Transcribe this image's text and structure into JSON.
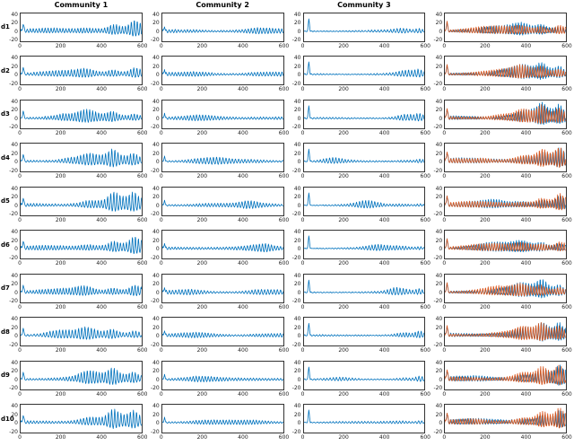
{
  "figure": {
    "background": "#ffffff",
    "axis_color": "#333333"
  },
  "chart_data": {
    "type": "line",
    "layout": "grid-10x4",
    "title": "",
    "rows": [
      "d1",
      "d2",
      "d3",
      "d4",
      "d5",
      "d6",
      "d7",
      "d8",
      "d9",
      "d10"
    ],
    "columns": [
      {
        "title": "Community 1",
        "series": [
          "blue"
        ]
      },
      {
        "title": "Community 2",
        "series": [
          "blue"
        ]
      },
      {
        "title": "Community 3",
        "series": [
          "blue"
        ]
      },
      {
        "title": "",
        "series": [
          "blue",
          "orange"
        ]
      }
    ],
    "xlim": [
      0,
      600
    ],
    "ylim": [
      -25,
      45
    ],
    "x_ticks": [
      "0",
      "200",
      "400",
      "600"
    ],
    "y_ticks": [
      "40",
      "20",
      "0",
      "-20"
    ],
    "x_data_end": 550,
    "colors": {
      "blue": "#0072BD",
      "orange": "#D95319"
    },
    "profiles": [
      {
        "freq": 0.45,
        "base": 4.5,
        "grow": 12,
        "pos": 1.25,
        "neg": 0.55,
        "bursts": [
          [
            300,
            45,
            8
          ],
          [
            420,
            28,
            13
          ],
          [
            515,
            22,
            12
          ]
        ],
        "spikes": [
          [
            12,
            20,
            6
          ]
        ],
        "rand": 6
      },
      {
        "freq": 0.45,
        "base": 5,
        "grow": 1.5,
        "pos": 1.05,
        "neg": 0.7,
        "bursts": [
          [
            170,
            70,
            3
          ],
          [
            430,
            60,
            3
          ]
        ],
        "spikes": [
          [
            10,
            15,
            5
          ]
        ],
        "rand": 5
      },
      {
        "freq": 0.45,
        "base": 1.8,
        "grow": 2.2,
        "pos": 1.2,
        "neg": 0.6,
        "bursts": [
          [
            450,
            45,
            4
          ],
          [
            525,
            20,
            6
          ]
        ],
        "spikes": [
          [
            22,
            33,
            6
          ]
        ],
        "rand": 9
      },
      {
        "freq": 0.5,
        "base": 6,
        "grow": 13,
        "pos": 1.25,
        "neg": 0.5,
        "bursts": [
          [
            350,
            40,
            7
          ],
          [
            440,
            25,
            12
          ],
          [
            520,
            18,
            12
          ]
        ],
        "spikes": [
          [
            10,
            26,
            6
          ]
        ],
        "rand": 6
      }
    ]
  }
}
